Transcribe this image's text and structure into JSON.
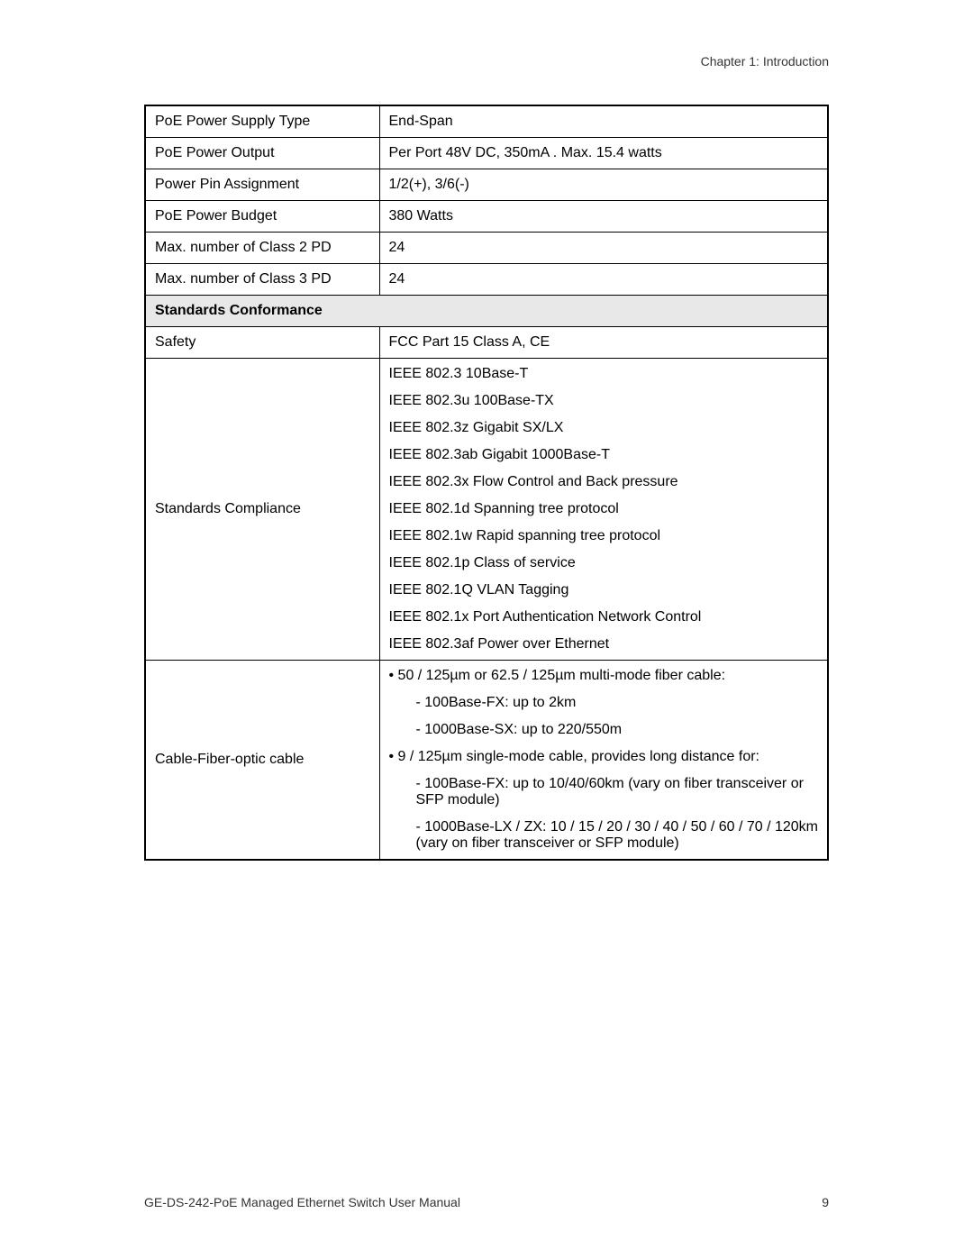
{
  "header": {
    "chapter": "Chapter 1: Introduction"
  },
  "rows": {
    "poe_supply_type": {
      "label": "PoE Power Supply Type",
      "value": "End-Span"
    },
    "poe_output": {
      "label": "PoE Power Output",
      "value": "Per Port 48V DC, 350mA . Max. 15.4 watts"
    },
    "power_pin": {
      "label": "Power Pin Assignment",
      "value": "1/2(+), 3/6(-)"
    },
    "poe_budget": {
      "label": "PoE Power Budget",
      "value": "380 Watts"
    },
    "class2": {
      "label": "Max. number of Class 2 PD",
      "value": "24"
    },
    "class3": {
      "label": "Max. number of Class 3 PD",
      "value": "24"
    },
    "section": {
      "label": "Standards Conformance"
    },
    "safety": {
      "label": "Safety",
      "value": "FCC Part 15 Class A, CE"
    },
    "compliance": {
      "label": "Standards Compliance",
      "lines": [
        "IEEE 802.3 10Base-T",
        "IEEE 802.3u 100Base-TX",
        "IEEE 802.3z Gigabit SX/LX",
        "IEEE 802.3ab Gigabit 1000Base-T",
        "IEEE 802.3x Flow Control and Back pressure",
        "IEEE 802.1d Spanning tree protocol",
        "IEEE 802.1w Rapid spanning tree protocol",
        "IEEE 802.1p Class of service",
        "IEEE 802.1Q VLAN Tagging",
        "IEEE 802.1x Port Authentication Network Control",
        "IEEE 802.3af Power over Ethernet"
      ]
    },
    "cable": {
      "label": "Cable-Fiber-optic cable",
      "lines": [
        {
          "text": "• 50 / 125µm or 62.5 / 125µm multi-mode fiber cable:",
          "indent": 0
        },
        {
          "text": "- 100Base-FX: up to 2km",
          "indent": 1
        },
        {
          "text": "- 1000Base-SX: up to 220/550m",
          "indent": 1
        },
        {
          "text": "• 9 / 125µm single-mode cable, provides long distance for:",
          "indent": 0
        },
        {
          "text": "- 100Base-FX: up to 10/40/60km (vary on fiber transceiver or SFP module)",
          "indent": 1
        },
        {
          "text": "- 1000Base-LX / ZX: 10 / 15 / 20 / 30 / 40 / 50 / 60 / 70 / 120km (vary on fiber transceiver or SFP module)",
          "indent": 1
        }
      ]
    }
  },
  "footer": {
    "title": "GE-DS-242-PoE Managed Ethernet Switch User Manual",
    "page": "9"
  }
}
